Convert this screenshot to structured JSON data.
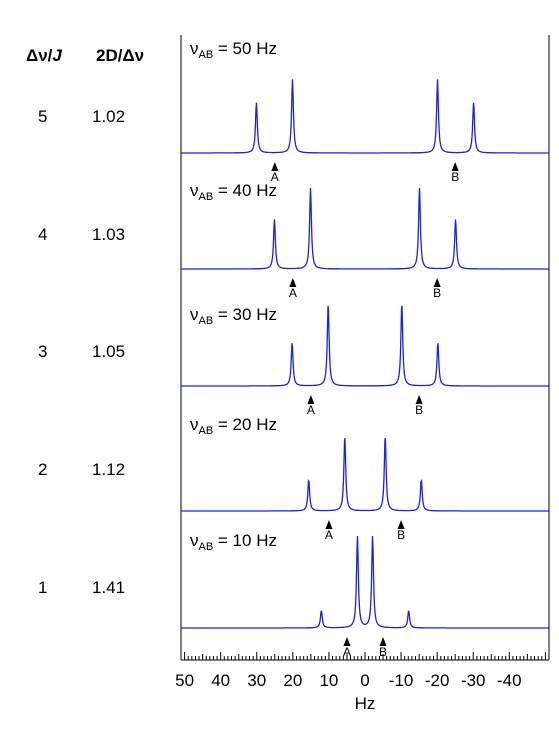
{
  "columns": {
    "ratio_header": "Δν/J",
    "ratio_header_italic": "J",
    "twoD_header": "2D/Δν"
  },
  "rows": [
    {
      "ratio": "5",
      "twoD": "1.02"
    },
    {
      "ratio": "4",
      "twoD": "1.03"
    },
    {
      "ratio": "3",
      "twoD": "1.05"
    },
    {
      "ratio": "2",
      "twoD": "1.12"
    },
    {
      "ratio": "1",
      "twoD": "1.41"
    }
  ],
  "chart_data": {
    "type": "line",
    "xlabel": "Hz",
    "xlim": [
      51,
      -51
    ],
    "x_ticks": [
      "50",
      "40",
      "30",
      "20",
      "10",
      "0",
      "-10",
      "-20",
      "-30",
      "-40"
    ],
    "x_tick_values": [
      50,
      40,
      30,
      20,
      10,
      0,
      -10,
      -20,
      -30,
      -40
    ],
    "line_color": "#1f1fe0",
    "panels": [
      {
        "label_prefix": "ν",
        "label_sub": "AB",
        "label_suffix": " = 50 Hz",
        "nu": 50,
        "markers": [
          {
            "label": "A",
            "x": 25
          },
          {
            "label": "B",
            "x": -25
          }
        ],
        "peaks": [
          {
            "x": 30.1,
            "h": 0.55
          },
          {
            "x": 20.1,
            "h": 0.8
          },
          {
            "x": -20.1,
            "h": 0.8
          },
          {
            "x": -30.1,
            "h": 0.55
          }
        ]
      },
      {
        "label_prefix": "ν",
        "label_sub": "AB",
        "label_suffix": " = 40 Hz",
        "nu": 40,
        "markers": [
          {
            "label": "A",
            "x": 20
          },
          {
            "label": "B",
            "x": -20
          }
        ],
        "peaks": [
          {
            "x": 25.1,
            "h": 0.54
          },
          {
            "x": 15.1,
            "h": 0.88
          },
          {
            "x": -15.1,
            "h": 0.88
          },
          {
            "x": -25.1,
            "h": 0.54
          }
        ]
      },
      {
        "label_prefix": "ν",
        "label_sub": "AB",
        "label_suffix": " = 30 Hz",
        "nu": 30,
        "markers": [
          {
            "label": "A",
            "x": 15
          },
          {
            "label": "B",
            "x": -15
          }
        ],
        "peaks": [
          {
            "x": 20.2,
            "h": 0.47
          },
          {
            "x": 10.2,
            "h": 0.9
          },
          {
            "x": -10.2,
            "h": 0.9
          },
          {
            "x": -20.2,
            "h": 0.47
          }
        ]
      },
      {
        "label_prefix": "ν",
        "label_sub": "AB",
        "label_suffix": " = 20 Hz",
        "nu": 20,
        "markers": [
          {
            "label": "A",
            "x": 10
          },
          {
            "label": "B",
            "x": -10
          }
        ],
        "peaks": [
          {
            "x": 15.6,
            "h": 0.34
          },
          {
            "x": 5.6,
            "h": 0.82
          },
          {
            "x": -5.6,
            "h": 0.82
          },
          {
            "x": -15.6,
            "h": 0.34
          }
        ]
      },
      {
        "label_prefix": "ν",
        "label_sub": "AB",
        "label_suffix": " = 10 Hz",
        "nu": 10,
        "markers": [
          {
            "label": "A",
            "x": 5
          },
          {
            "label": "B",
            "x": -5
          }
        ],
        "peaks": [
          {
            "x": 12.1,
            "h": 0.19
          },
          {
            "x": 2.1,
            "h": 1.0
          },
          {
            "x": -2.1,
            "h": 1.0
          },
          {
            "x": -12.1,
            "h": 0.19
          }
        ]
      }
    ]
  }
}
